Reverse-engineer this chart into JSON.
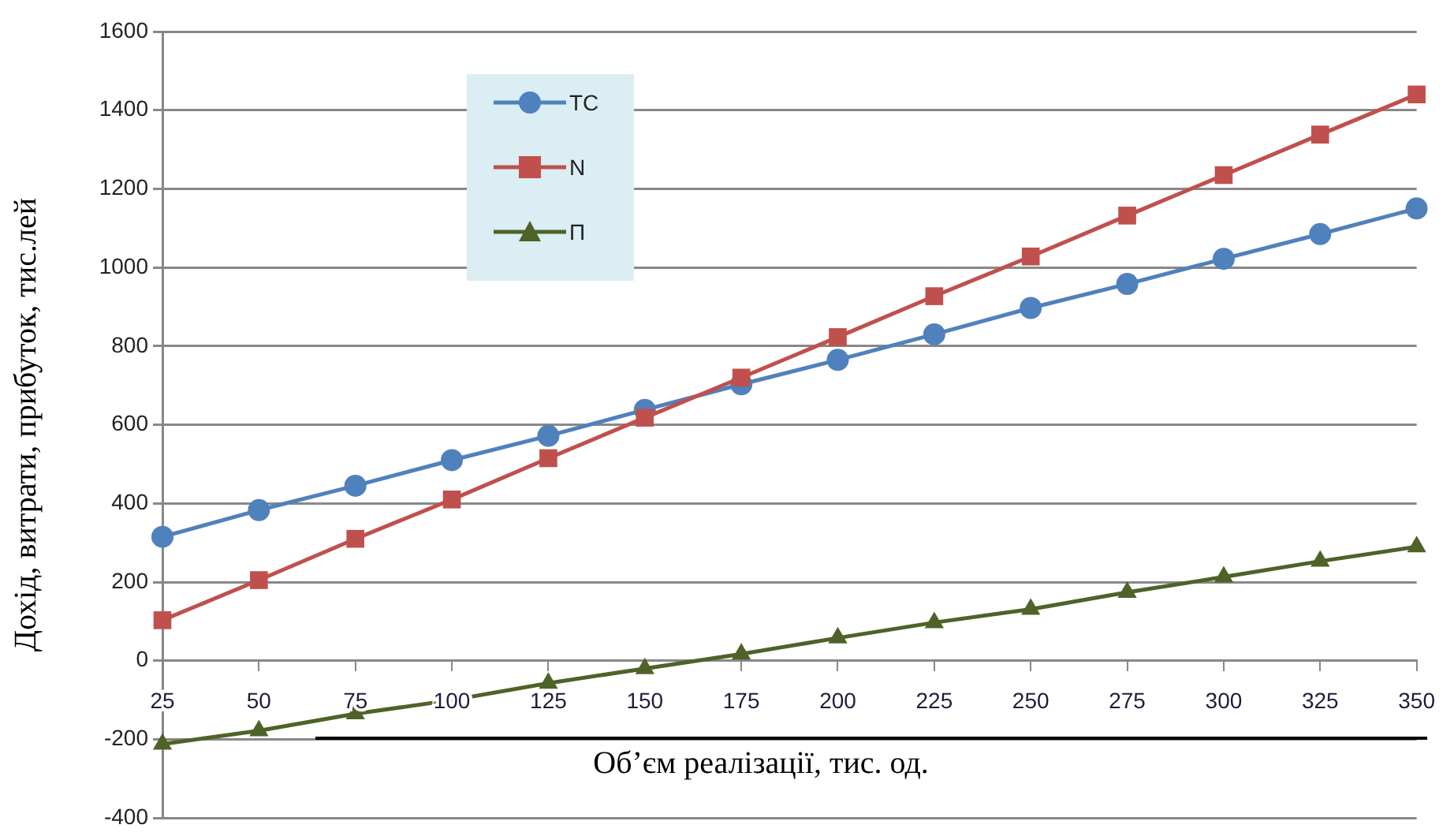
{
  "chart_data": {
    "type": "line",
    "ylabel": "Дохід, витрати, прибуток, тис.лей",
    "xlabel": "Об’єм реалізації, тис. од.",
    "categories": [
      "25",
      "50",
      "75",
      "100",
      "125",
      "150",
      "175",
      "200",
      "225",
      "250",
      "275",
      "300",
      "325",
      "350"
    ],
    "series": [
      {
        "name": "TC",
        "color": "#4f81bd",
        "marker": "circle",
        "values": [
          315,
          383,
          445,
          510,
          572,
          638,
          703,
          765,
          830,
          897,
          958,
          1022,
          1085,
          1150
        ]
      },
      {
        "name": "N",
        "color": "#c0504d",
        "marker": "square",
        "values": [
          103,
          205,
          310,
          410,
          515,
          618,
          720,
          823,
          927,
          1028,
          1132,
          1235,
          1338,
          1440
        ]
      },
      {
        "name": "П",
        "color": "#4f6228",
        "marker": "triangle",
        "values": [
          -212,
          -178,
          -135,
          -100,
          -57,
          -20,
          17,
          58,
          97,
          131,
          174,
          213,
          253,
          290
        ]
      }
    ],
    "ylim": [
      -400,
      1600
    ],
    "yticks": [
      -400,
      -200,
      0,
      200,
      400,
      600,
      800,
      1000,
      1200,
      1400,
      1600
    ],
    "grid": "y",
    "legend": "top left",
    "line_style": "solid"
  }
}
